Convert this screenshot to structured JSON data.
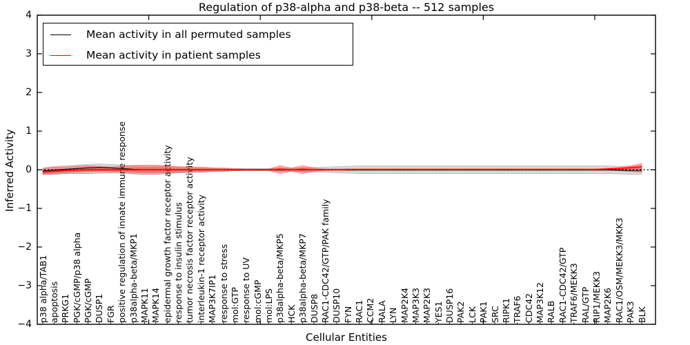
{
  "title": "Regulation of p38-alpha and p38-beta -- 512 samples",
  "axes": {
    "ylabel": "Inferred Activity",
    "xlabel": "Cellular Entities",
    "yticks": [
      "4",
      "3",
      "2",
      "1",
      "0",
      "−1",
      "−2",
      "−3",
      "−4"
    ],
    "ylim": [
      -4,
      4
    ]
  },
  "legend": {
    "items": [
      {
        "label": "Mean activity in all permuted samples",
        "color": "#000000"
      },
      {
        "label": "Mean activity in patient samples",
        "color": "#ff0000"
      }
    ]
  },
  "colors": {
    "permuted_line": "#000000",
    "patient_line": "#ff0000",
    "permuted_band": "rgba(125,125,125,0.30)",
    "patient_band": "rgba(255,0,0,0.28)",
    "zero_line": "#000000",
    "spine": "#000000"
  },
  "chart_data": {
    "type": "line",
    "title": "Regulation of p38-alpha and p38-beta -- 512 samples",
    "xlabel": "Cellular Entities",
    "ylabel": "Inferred Activity",
    "ylim": [
      -4,
      4
    ],
    "grid": false,
    "legend_position": "upper left",
    "zero_reference_line": {
      "y": 0,
      "style": "dotted",
      "color": "#000000"
    },
    "categories": [
      "p38 alpha/TAB1",
      "apoptosis",
      "PRKG1",
      "PGK/cGMP/p38 alpha",
      "PGK/cGMP",
      "DUSP1",
      "FGR",
      "positive regulation of innate immune response",
      "p38alpha-beta/MKP1",
      "MAPK11",
      "MAPK14",
      "epidermal growth factor receptor activity",
      "response to insulin stimulus",
      "tumor necrosis factor receptor activity",
      "interleukin-1 receptor activity",
      "MAP3K7IP1",
      "response to stress",
      "mol:GTP",
      "response to UV",
      "mol:cGMP",
      "mol:LPS",
      "p38alpha-beta/MKP5",
      "HCK",
      "p38alpha-beta/MKP7",
      "DUSP8",
      "RAC1-CDC42/GTP/PAK family",
      "DUSP10",
      "FYN",
      "RAC1",
      "CCM2",
      "RALA",
      "LYN",
      "MAP2K4",
      "MAP3K3",
      "MAP2K3",
      "YES1",
      "DUSP16",
      "PAK2",
      "LCK",
      "PAK1",
      "SRC",
      "RIPK1",
      "TRAF6",
      "CDC42",
      "MAP3K12",
      "RALB",
      "RAC1-CDC42/GTP",
      "TRAF6/MEKK3",
      "RAL/GTP",
      "RIP1/MEKK3",
      "MAP2K6",
      "RAC1/OSM/MEKK3/MKK3",
      "PAK3",
      "BLK"
    ],
    "series": [
      {
        "name": "Mean activity in all permuted samples",
        "color": "#000000",
        "values": [
          -0.03,
          -0.01,
          0.01,
          0.03,
          0.05,
          0.06,
          0.05,
          0.03,
          0.01,
          0,
          0,
          0,
          0,
          0,
          0,
          0,
          0,
          0,
          0,
          0,
          0,
          0,
          0,
          0,
          0,
          0,
          0,
          0,
          0,
          0,
          0,
          0,
          0,
          0,
          0,
          0,
          0,
          0,
          0,
          0,
          0,
          0,
          0,
          0,
          0,
          0,
          0,
          0,
          0,
          0,
          0,
          -0.01,
          -0.02,
          -0.02
        ],
        "band_halfwidth": [
          0.08,
          0.09,
          0.09,
          0.09,
          0.09,
          0.09,
          0.09,
          0.09,
          0.09,
          0.09,
          0.09,
          0.08,
          0.07,
          0.06,
          0.05,
          0.04,
          0.04,
          0.03,
          0.03,
          0.03,
          0.03,
          0.04,
          0.04,
          0.05,
          0.06,
          0.07,
          0.08,
          0.09,
          0.1,
          0.1,
          0.1,
          0.1,
          0.1,
          0.1,
          0.1,
          0.1,
          0.1,
          0.1,
          0.1,
          0.1,
          0.1,
          0.1,
          0.1,
          0.1,
          0.1,
          0.1,
          0.1,
          0.1,
          0.1,
          0.1,
          0.1,
          0.1,
          0.1,
          0.1
        ]
      },
      {
        "name": "Mean activity in patient samples",
        "color": "#ff0000",
        "values": [
          -0.06,
          -0.04,
          -0.02,
          -0.01,
          0,
          0,
          0,
          0,
          0,
          0,
          0,
          0,
          0,
          0,
          0,
          0,
          0,
          0,
          0,
          0,
          0,
          0.01,
          0,
          0.01,
          0,
          0,
          0,
          0.01,
          0.01,
          0.01,
          0.01,
          0.01,
          0.01,
          0.01,
          0.01,
          0.01,
          0.01,
          0.01,
          0.01,
          0.01,
          0.01,
          0.01,
          0.01,
          0.01,
          0.01,
          0.01,
          0.01,
          0.01,
          0.01,
          0.01,
          0.02,
          0.03,
          0.05,
          0.08
        ],
        "band_upper": [
          0.03,
          0.07,
          0.07,
          0.09,
          0.1,
          0.09,
          0.07,
          0.09,
          0.11,
          0.12,
          0.12,
          0.1,
          0.08,
          0.07,
          0.07,
          0.05,
          0.04,
          0.03,
          0.02,
          0.02,
          0.02,
          0.11,
          0.04,
          0.11,
          0.04,
          0.02,
          0.02,
          0.02,
          0.02,
          0.02,
          0.02,
          0.02,
          0.02,
          0.02,
          0.02,
          0.02,
          0.02,
          0.02,
          0.02,
          0.02,
          0.02,
          0.02,
          0.02,
          0.02,
          0.02,
          0.02,
          0.02,
          0.02,
          0.02,
          0.02,
          0.04,
          0.06,
          0.1,
          0.16
        ],
        "band_lower": [
          -0.13,
          -0.12,
          -0.1,
          -0.1,
          -0.1,
          -0.09,
          -0.08,
          -0.09,
          -0.11,
          -0.12,
          -0.12,
          -0.1,
          -0.08,
          -0.07,
          -0.07,
          -0.05,
          -0.04,
          -0.03,
          -0.02,
          -0.02,
          -0.02,
          -0.1,
          -0.04,
          -0.1,
          -0.04,
          -0.02,
          -0.02,
          -0.02,
          -0.02,
          -0.02,
          -0.02,
          -0.02,
          -0.02,
          -0.02,
          -0.02,
          -0.02,
          -0.02,
          -0.02,
          -0.02,
          -0.02,
          -0.02,
          -0.02,
          -0.02,
          -0.02,
          -0.02,
          -0.02,
          -0.02,
          -0.02,
          -0.02,
          -0.02,
          -0.02,
          -0.03,
          -0.04,
          -0.06
        ]
      }
    ]
  }
}
